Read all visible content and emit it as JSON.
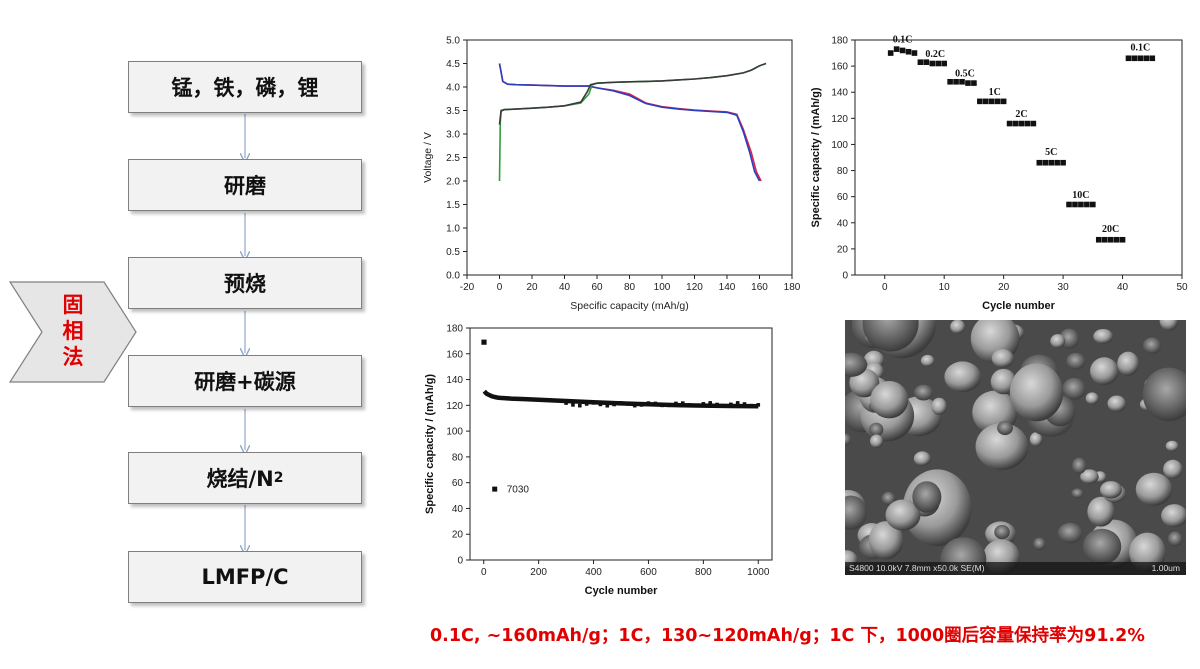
{
  "flow": {
    "steps": [
      "锰，铁，磷，锂",
      "研磨",
      "预烧",
      "研磨+碳源",
      "烧结/N",
      "LMFP/C"
    ],
    "sintering_subscript": "2",
    "method_label": [
      "固",
      "相",
      "法"
    ]
  },
  "charts": {
    "voltage": {
      "chart_data": {
        "type": "line",
        "xlabel": "Specific capacity (mAh/g)",
        "ylabel": "Voltage / V",
        "xlim": [
          -20,
          180
        ],
        "ylim": [
          0,
          5.0
        ],
        "xticks": [
          "-20",
          "0",
          "20",
          "40",
          "60",
          "80",
          "100",
          "120",
          "140",
          "160",
          "180"
        ],
        "yticks": [
          "0.0",
          "0.5",
          "1.0",
          "1.5",
          "2.0",
          "2.5",
          "3.0",
          "3.5",
          "4.0",
          "4.5",
          "5.0"
        ],
        "series": [
          {
            "color": "#e0204a",
            "x": [
              0,
              2,
              5,
              10,
              20,
              30,
              40,
              50,
              55,
              60,
              70,
              80,
              90,
              100,
              110,
              120,
              130,
              140,
              146,
              150,
              155,
              158,
              161
            ],
            "y": [
              4.5,
              4.12,
              4.06,
              4.05,
              4.04,
              4.03,
              4.02,
              4.02,
              4.02,
              3.98,
              3.93,
              3.85,
              3.66,
              3.58,
              3.54,
              3.51,
              3.49,
              3.47,
              3.42,
              3.1,
              2.6,
              2.2,
              2.0
            ]
          },
          {
            "color": "#2a3fbf",
            "x": [
              0,
              2,
              5,
              10,
              20,
              30,
              40,
              50,
              55,
              60,
              70,
              80,
              90,
              100,
              110,
              120,
              130,
              140,
              146,
              150,
              154,
              157,
              160
            ],
            "y": [
              4.5,
              4.12,
              4.06,
              4.05,
              4.04,
              4.03,
              4.02,
              4.02,
              4.02,
              3.98,
              3.92,
              3.82,
              3.65,
              3.57,
              3.53,
              3.5,
              3.48,
              3.46,
              3.4,
              3.05,
              2.6,
              2.2,
              2.0
            ]
          },
          {
            "color": "#2e9e3a",
            "x": [
              0,
              0.5,
              1,
              3,
              10,
              20,
              30,
              40,
              50,
              55,
              57,
              60,
              70,
              80,
              90,
              100,
              110,
              120,
              130,
              140,
              150,
              155,
              160,
              164
            ],
            "y": [
              2.0,
              3.25,
              3.48,
              3.52,
              3.53,
              3.55,
              3.57,
              3.6,
              3.66,
              3.85,
              4.05,
              4.08,
              4.1,
              4.11,
              4.12,
              4.13,
              4.15,
              4.17,
              4.2,
              4.24,
              4.3,
              4.36,
              4.45,
              4.5
            ]
          },
          {
            "color": "#3a3a3a",
            "x": [
              0,
              0.5,
              1,
              3,
              10,
              20,
              30,
              40,
              50,
              54,
              56,
              60,
              70,
              80,
              90,
              100,
              110,
              120,
              130,
              140,
              150,
              155,
              160,
              164
            ],
            "y": [
              3.2,
              3.35,
              3.5,
              3.52,
              3.53,
              3.55,
              3.57,
              3.6,
              3.68,
              3.9,
              4.05,
              4.08,
              4.1,
              4.11,
              4.12,
              4.13,
              4.15,
              4.17,
              4.2,
              4.24,
              4.3,
              4.36,
              4.45,
              4.5
            ]
          }
        ]
      }
    },
    "rate": {
      "chart_data": {
        "type": "scatter",
        "xlabel": "Cycle number",
        "ylabel": "Specific capacity / (mAh/g)",
        "xlim": [
          -5,
          50
        ],
        "ylim": [
          0,
          180
        ],
        "xticks": [
          "0",
          "10",
          "20",
          "30",
          "40",
          "50"
        ],
        "yticks": [
          "0",
          "20",
          "40",
          "60",
          "80",
          "100",
          "120",
          "140",
          "160",
          "180"
        ],
        "points": {
          "x": [
            1,
            2,
            3,
            4,
            5,
            6,
            7,
            8,
            9,
            10,
            11,
            12,
            13,
            14,
            15,
            16,
            17,
            18,
            19,
            20,
            21,
            22,
            23,
            24,
            25,
            26,
            27,
            28,
            29,
            30,
            31,
            32,
            33,
            34,
            35,
            36,
            37,
            38,
            39,
            40,
            41,
            42,
            43,
            44,
            45
          ],
          "y": [
            170,
            173,
            172,
            171,
            170,
            163,
            163,
            162,
            162,
            162,
            148,
            148,
            148,
            147,
            147,
            133,
            133,
            133,
            133,
            133,
            116,
            116,
            116,
            116,
            116,
            86,
            86,
            86,
            86,
            86,
            54,
            54,
            54,
            54,
            54,
            27,
            27,
            27,
            27,
            27,
            166,
            166,
            166,
            166,
            166
          ]
        },
        "annotations": [
          {
            "text": "0.1C",
            "x": 3,
            "y": 178
          },
          {
            "text": "0.2C",
            "x": 8.5,
            "y": 167
          },
          {
            "text": "0.5C",
            "x": 13.5,
            "y": 152
          },
          {
            "text": "1C",
            "x": 18.5,
            "y": 138
          },
          {
            "text": "2C",
            "x": 23,
            "y": 121
          },
          {
            "text": "5C",
            "x": 28,
            "y": 92
          },
          {
            "text": "10C",
            "x": 33,
            "y": 59
          },
          {
            "text": "20C",
            "x": 38,
            "y": 33
          },
          {
            "text": "0.1C",
            "x": 43,
            "y": 172
          }
        ]
      }
    },
    "cycle": {
      "chart_data": {
        "type": "scatter",
        "xlabel": "Cycle number",
        "ylabel": "Specific capacity / (mAh/g)",
        "xlim": [
          -50,
          1050
        ],
        "ylim": [
          0,
          180
        ],
        "xticks": [
          "0",
          "200",
          "400",
          "600",
          "800",
          "1000"
        ],
        "yticks": [
          "0",
          "20",
          "40",
          "60",
          "80",
          "100",
          "120",
          "140",
          "160",
          "180"
        ],
        "legend": "7030",
        "first_point": {
          "x": 1,
          "y": 169
        },
        "trend": {
          "x": [
            2,
            10,
            20,
            30,
            40,
            50,
            60,
            80,
            100,
            150,
            200,
            300,
            400,
            500,
            600,
            700,
            800,
            900,
            1000
          ],
          "y": [
            131,
            129,
            128,
            127,
            126.5,
            126,
            125.8,
            125.5,
            125.2,
            124.8,
            124.3,
            123.4,
            122.4,
            121.5,
            120.8,
            120.2,
            119.8,
            119.5,
            119.3
          ]
        }
      }
    }
  },
  "sem": {
    "info": "S4800 10.0kV 7.8mm x50.0k SE(M)",
    "scale": "1.00um"
  },
  "caption": "0.1C, ~160mAh/g；1C，130~120mAh/g；1C 下，1000圈后容量保持率为91.2%"
}
